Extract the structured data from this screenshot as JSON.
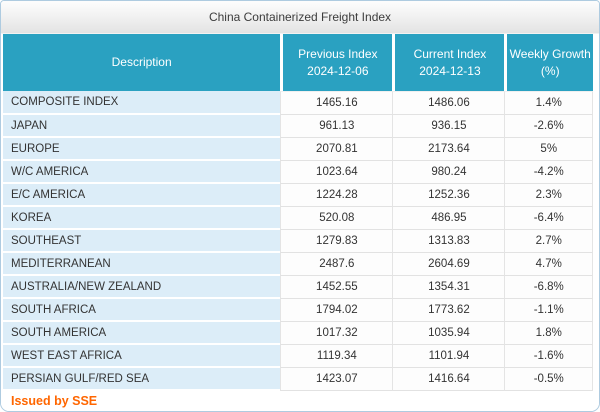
{
  "window": {
    "title": "China Containerized Freight Index"
  },
  "colors": {
    "header_bg": "#2aa1c1",
    "desc_cell_bg": "#dcedf8",
    "accent_orange": "#ff6600",
    "window_border": "#aecbe0"
  },
  "table": {
    "columns": [
      {
        "id": "description",
        "label": "Description",
        "sublabel": ""
      },
      {
        "id": "previous",
        "label": "Previous Index",
        "sublabel": "2024-12-06"
      },
      {
        "id": "current",
        "label": "Current Index",
        "sublabel": "2024-12-13"
      },
      {
        "id": "growth",
        "label": "Weekly Growth",
        "sublabel": "(%)"
      }
    ],
    "rows": [
      {
        "description": "COMPOSITE INDEX",
        "previous": "1465.16",
        "current": "1486.06",
        "growth": "1.4%"
      },
      {
        "description": "JAPAN",
        "previous": "961.13",
        "current": "936.15",
        "growth": "-2.6%"
      },
      {
        "description": "EUROPE",
        "previous": "2070.81",
        "current": "2173.64",
        "growth": "5%"
      },
      {
        "description": "W/C AMERICA",
        "previous": "1023.64",
        "current": "980.24",
        "growth": "-4.2%"
      },
      {
        "description": "E/C AMERICA",
        "previous": "1224.28",
        "current": "1252.36",
        "growth": "2.3%"
      },
      {
        "description": "KOREA",
        "previous": "520.08",
        "current": "486.95",
        "growth": "-6.4%"
      },
      {
        "description": "SOUTHEAST",
        "previous": "1279.83",
        "current": "1313.83",
        "growth": "2.7%"
      },
      {
        "description": "MEDITERRANEAN",
        "previous": "2487.6",
        "current": "2604.69",
        "growth": "4.7%"
      },
      {
        "description": "AUSTRALIA/NEW ZEALAND",
        "previous": "1452.55",
        "current": "1354.31",
        "growth": "-6.8%"
      },
      {
        "description": "SOUTH AFRICA",
        "previous": "1794.02",
        "current": "1773.62",
        "growth": "-1.1%"
      },
      {
        "description": "SOUTH AMERICA",
        "previous": "1017.32",
        "current": "1035.94",
        "growth": "1.8%"
      },
      {
        "description": "WEST EAST AFRICA",
        "previous": "1119.34",
        "current": "1101.94",
        "growth": "-1.6%"
      },
      {
        "description": "PERSIAN GULF/RED SEA",
        "previous": "1423.07",
        "current": "1416.64",
        "growth": "-0.5%"
      }
    ]
  },
  "footer": {
    "issued_by": "Issued by SSE"
  }
}
